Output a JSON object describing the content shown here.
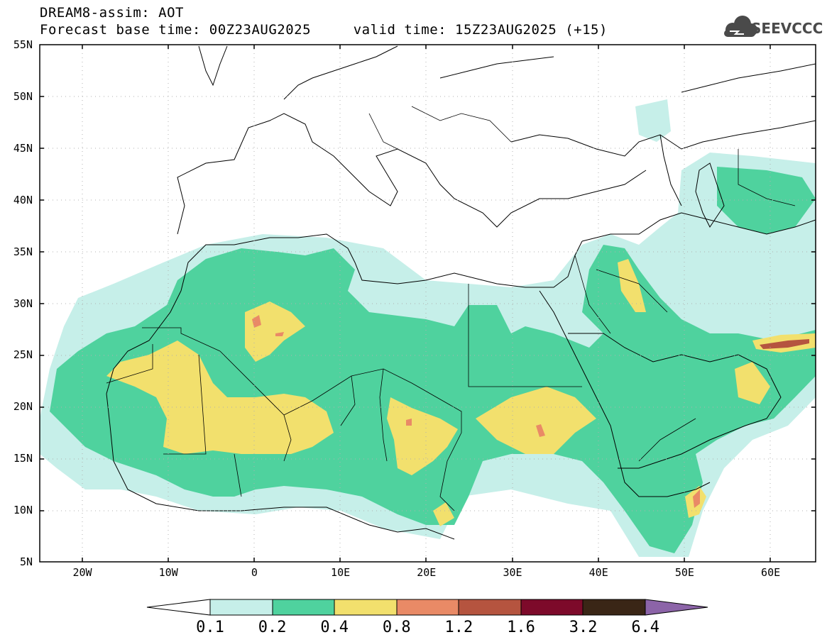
{
  "header": {
    "line1": "DREAM8-assim: AOT",
    "line2": "Forecast base time: 00Z23AUG2025     valid time: 15Z23AUG2025 (+15)",
    "logo_text": "SEEVCCC",
    "logo_icon": "cloud-logo-icon"
  },
  "map": {
    "lat_labels": [
      "55N",
      "50N",
      "45N",
      "40N",
      "35N",
      "30N",
      "25N",
      "20N",
      "15N",
      "10N",
      "5N"
    ],
    "lon_labels": [
      "20W",
      "10W",
      "0",
      "10E",
      "20E",
      "30E",
      "40E",
      "50E",
      "60E"
    ]
  },
  "colorbar": {
    "labels": [
      "0.1",
      "0.2",
      "0.4",
      "0.8",
      "1.2",
      "1.6",
      "3.2",
      "6.4"
    ],
    "colors": [
      "#ffffff",
      "#c6efe9",
      "#4fd29e",
      "#f2e06d",
      "#e98a66",
      "#b5543f",
      "#7d0a2a",
      "#3a2616",
      "#8c64a8"
    ]
  },
  "colors": {
    "c01": "#c6efe9",
    "c02": "#4fd29e",
    "c04": "#f2e06d",
    "c08": "#e98a66",
    "c12": "#b5543f"
  }
}
